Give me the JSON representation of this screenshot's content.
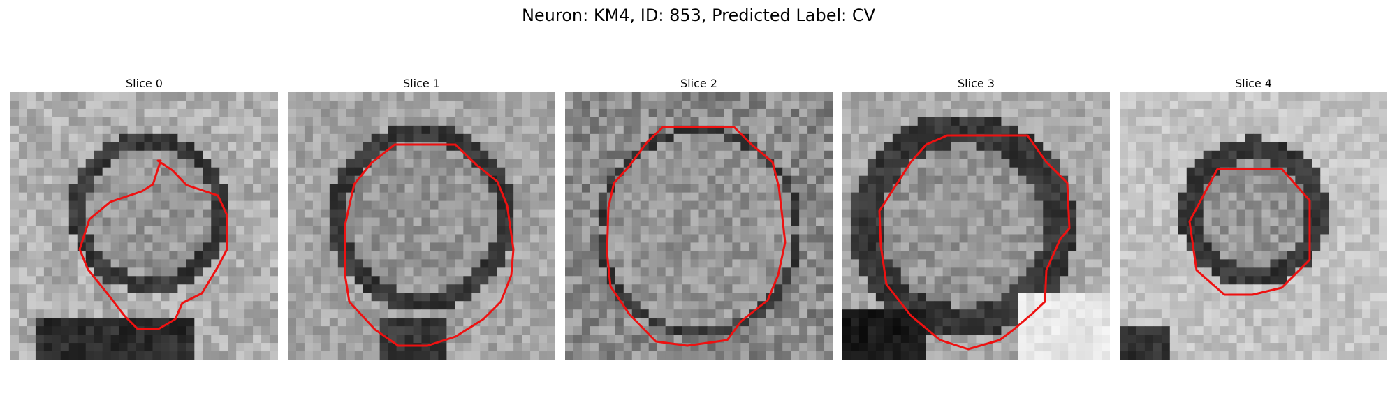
{
  "figure": {
    "title": "Neuron: KM4, ID: 853, Predicted Label: CV",
    "contour_color": "#ee1111"
  },
  "panels": [
    {
      "title": "Slice 0"
    },
    {
      "title": "Slice 1"
    },
    {
      "title": "Slice 2"
    },
    {
      "title": "Slice 3"
    },
    {
      "title": "Slice 4"
    }
  ]
}
